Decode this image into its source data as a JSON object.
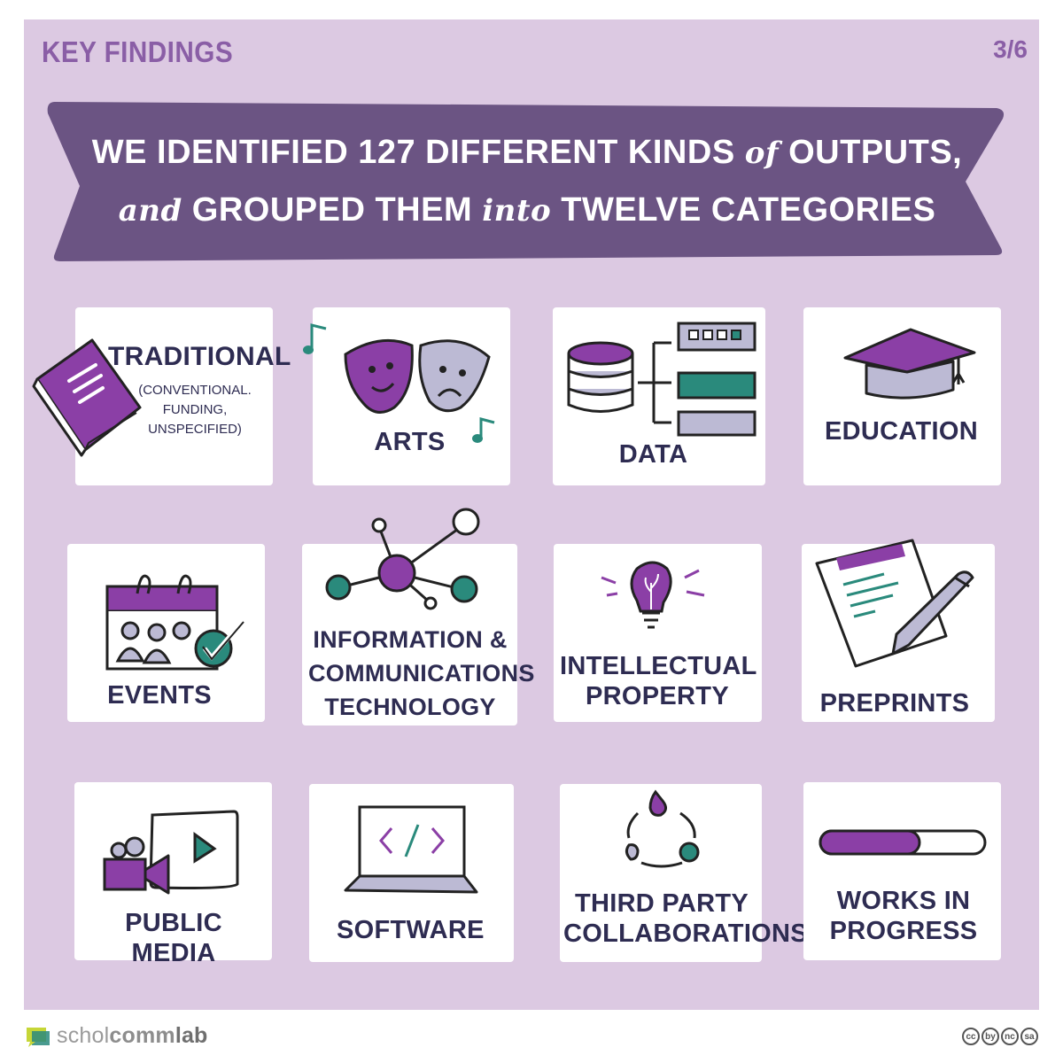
{
  "header": {
    "kicker": "KEY FINDINGS",
    "page": "3/6"
  },
  "banner": {
    "line1_a": "WE IDENTIFIED 127 DIFFERENT KINDS",
    "line1_b": "of",
    "line1_c": "OUTPUTS,",
    "line2_a": "and",
    "line2_b": "GROUPED THEM",
    "line2_c": "into",
    "line2_d": "TWELVE CATEGORIES"
  },
  "categories": [
    {
      "label": "TRADITIONAL",
      "sub": [
        "(CONVENTIONAL.",
        "FUNDING,",
        "UNSPECIFIED)"
      ],
      "icon": "book-icon"
    },
    {
      "label": "ARTS",
      "icon": "theatre-masks-icon"
    },
    {
      "label": "DATA",
      "icon": "database-icon"
    },
    {
      "label": "EDUCATION",
      "icon": "graduation-cap-icon"
    },
    {
      "label": "EVENTS",
      "icon": "calendar-icon"
    },
    {
      "label_lines": [
        "INFORMATION &",
        "COMMUNICATIONS",
        "TECHNOLOGY"
      ],
      "icon": "network-icon"
    },
    {
      "label_lines": [
        "INTELLECTUAL",
        "PROPERTY"
      ],
      "icon": "lightbulb-icon"
    },
    {
      "label": "PREPRINTS",
      "icon": "document-pencil-icon"
    },
    {
      "label": "PUBLIC MEDIA",
      "icon": "video-camera-icon"
    },
    {
      "label": "SOFTWARE",
      "icon": "laptop-code-icon"
    },
    {
      "label_lines": [
        "THIRD PARTY",
        "COLLABORATIONS"
      ],
      "icon": "collaboration-cycle-icon"
    },
    {
      "label_lines": [
        "WORKS IN",
        "PROGRESS"
      ],
      "icon": "progress-bar-icon"
    }
  ],
  "progress": {
    "value": 0.6
  },
  "footer": {
    "brand_a": "schol",
    "brand_b": "comm",
    "brand_c": "lab",
    "license": [
      "cc",
      "by",
      "nc",
      "sa"
    ]
  },
  "colors": {
    "panel": "#dcc9e2",
    "banner": "#6b5483",
    "purple": "#8b3fa6",
    "teal": "#2a8a7c",
    "lavender": "#bcbad4",
    "ink": "#2e2c52"
  }
}
